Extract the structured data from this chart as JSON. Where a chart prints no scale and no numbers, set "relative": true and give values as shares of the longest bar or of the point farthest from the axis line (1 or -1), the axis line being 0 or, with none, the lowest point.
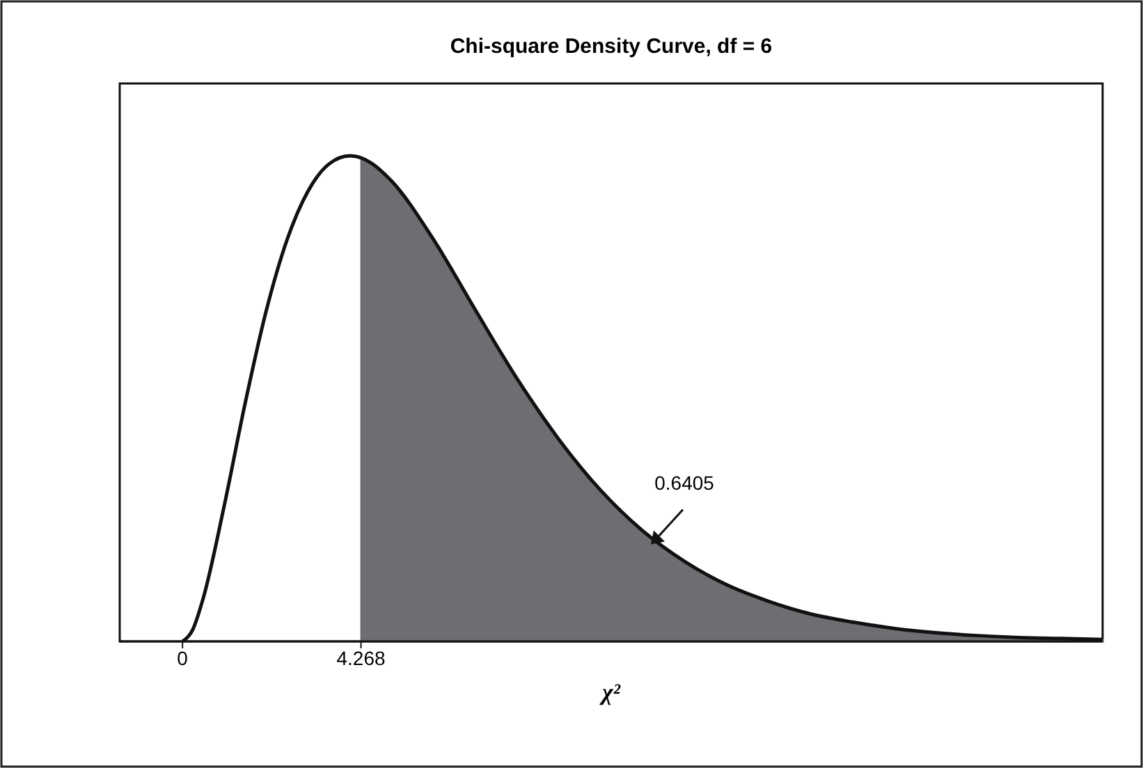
{
  "chart_data": {
    "type": "line",
    "title": "Chi-square Density Curve, df = 6",
    "xlabel": "χ²",
    "relative": true,
    "xlim": [
      -1.5,
      22
    ],
    "xticks": [
      0,
      4.268
    ],
    "grid": false,
    "marker": "none",
    "line_style": "solid",
    "series": [
      {
        "type": "area",
        "color": "#6d6e71",
        "x": [
          4.268,
          4.5,
          5,
          6,
          7,
          8,
          9,
          10,
          11,
          12,
          13,
          14,
          15,
          16,
          17,
          18,
          19,
          20,
          21,
          22
        ],
        "values": [
          0.996,
          0.986,
          0.948,
          0.828,
          0.683,
          0.541,
          0.416,
          0.311,
          0.228,
          0.165,
          0.117,
          0.083,
          0.057,
          0.04,
          0.027,
          0.018,
          0.012,
          0.008,
          0.006,
          0.004
        ]
      },
      {
        "color": "#111111",
        "x": [
          0,
          0.25,
          0.5,
          1,
          1.5,
          2,
          2.5,
          3,
          3.5,
          4,
          4.268,
          4.5,
          5,
          6,
          7,
          8,
          9,
          10,
          11,
          12,
          13,
          14,
          15,
          16,
          17,
          18,
          19,
          20,
          21,
          22
        ],
        "values": [
          0,
          0.025,
          0.09,
          0.28,
          0.491,
          0.68,
          0.827,
          0.927,
          0.983,
          1,
          0.996,
          0.986,
          0.948,
          0.828,
          0.683,
          0.541,
          0.416,
          0.311,
          0.228,
          0.165,
          0.117,
          0.083,
          0.057,
          0.04,
          0.027,
          0.018,
          0.012,
          0.008,
          0.006,
          0.004
        ]
      }
    ],
    "annotations": [
      {
        "text": "0.6405",
        "x": 11.2,
        "y": 0.2
      }
    ]
  }
}
